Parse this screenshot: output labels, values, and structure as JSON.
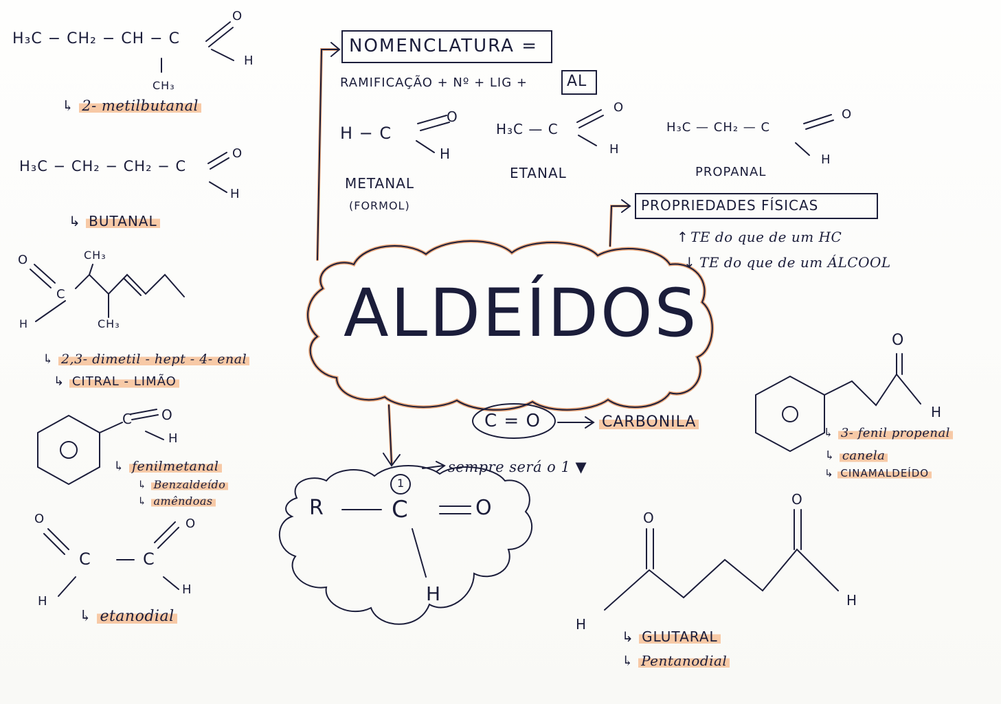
{
  "title": "ALDEÍDOS",
  "nomenclatura": {
    "heading": "NOMENCLATURA =",
    "rule_prefix": "RAMIFICAÇÃO + Nº + LIG +",
    "rule_suffix": "AL",
    "examples": [
      {
        "formula_left": "H − C",
        "o": "O",
        "h": "H",
        "name": "METANAL",
        "alt": "(FORMOL)"
      },
      {
        "formula_left": "H₃C — C",
        "o": "O",
        "h": "H",
        "name": "ETANAL"
      },
      {
        "formula_left": "H₃C — CH₂ — C",
        "o": "O",
        "h": "H",
        "name": "PROPANAL"
      }
    ]
  },
  "propriedades": {
    "heading": "PROPRIEDADES FÍSICAS",
    "line1_arrow": "↑",
    "line1": "TE  do que de um  HC",
    "line2_arrow": "↓",
    "line2": "TE  do que de um  ÁLCOOL"
  },
  "left": {
    "m1_formula": "H₃C − CH₂ − CH − C",
    "m1_o": "O",
    "m1_h": "H",
    "m1_ch3": "CH₃",
    "m1_name": "2- metilbutanal",
    "m2_formula": "H₃C − CH₂ − CH₂ − C",
    "m2_o": "O",
    "m2_h": "H",
    "m2_name": "BUTANAL",
    "m3_o": "O",
    "m3_c": "C",
    "m3_h": "H",
    "m3_ch3_top": "CH₃",
    "m3_ch3_bottom": "CH₃",
    "m3_name": "2,3- dimetil - hept - 4- enal",
    "m3_alt": "CITRAL  - LIMÃO",
    "m4_c": "C",
    "m4_o": "O",
    "m4_h": "H",
    "m4_ring": "O",
    "m4_name": "fenilmetanal",
    "m4_alt1": "Benzaldeído",
    "m4_alt2": "amêndoas",
    "m5_o1": "O",
    "m5_c1": "C",
    "m5_h1": "H",
    "m5_c2": "C",
    "m5_o2": "O",
    "m5_h2": "H",
    "m5_name": "etanodial"
  },
  "center": {
    "carbonila_formula": "C = O",
    "carbonila": "CARBONILA",
    "r": "R",
    "c": "C",
    "o": "O",
    "h": "H",
    "num": "1",
    "sempre": "sempre será o 1"
  },
  "right": {
    "m6_o": "O",
    "m6_h": "H",
    "m6_ring": "O",
    "m6_name": "3- fenil propenal",
    "m6_alt1": "canela",
    "m6_alt2": "CINAMALDEÍDO",
    "m7_o1": "O",
    "m7_o2": "O",
    "m7_h1": "H",
    "m7_h2": "H",
    "m7_name": "GLUTARAL",
    "m7_alt": "Pentanodial"
  },
  "colors": {
    "ink": "#1b1d3a",
    "highlight": "#f7c9a6",
    "accent_line": "#e9a679"
  }
}
